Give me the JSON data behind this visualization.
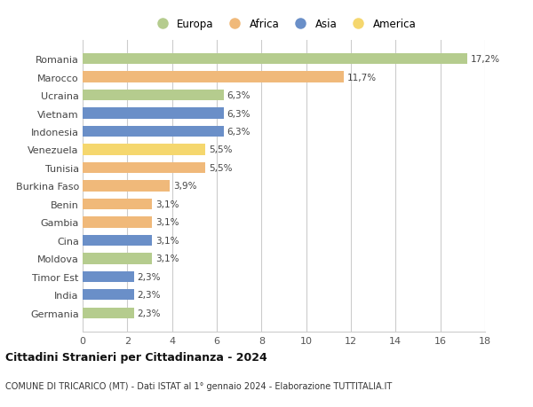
{
  "categories": [
    "Romania",
    "Marocco",
    "Ucraina",
    "Vietnam",
    "Indonesia",
    "Venezuela",
    "Tunisia",
    "Burkina Faso",
    "Benin",
    "Gambia",
    "Cina",
    "Moldova",
    "Timor Est",
    "India",
    "Germania"
  ],
  "values": [
    17.2,
    11.7,
    6.3,
    6.3,
    6.3,
    5.5,
    5.5,
    3.9,
    3.1,
    3.1,
    3.1,
    3.1,
    2.3,
    2.3,
    2.3
  ],
  "labels": [
    "17,2%",
    "11,7%",
    "6,3%",
    "6,3%",
    "6,3%",
    "5,5%",
    "5,5%",
    "3,9%",
    "3,1%",
    "3,1%",
    "3,1%",
    "3,1%",
    "2,3%",
    "2,3%",
    "2,3%"
  ],
  "continents": [
    "Europa",
    "Africa",
    "Europa",
    "Asia",
    "Asia",
    "America",
    "Africa",
    "Africa",
    "Africa",
    "Africa",
    "Asia",
    "Europa",
    "Asia",
    "Asia",
    "Europa"
  ],
  "colors": {
    "Europa": "#b5cc8e",
    "Africa": "#f0b97a",
    "Asia": "#6a8fc8",
    "America": "#f5d76e"
  },
  "legend_order": [
    "Europa",
    "Africa",
    "Asia",
    "America"
  ],
  "xlim": [
    0,
    18
  ],
  "xticks": [
    0,
    2,
    4,
    6,
    8,
    10,
    12,
    14,
    16,
    18
  ],
  "title": "Cittadini Stranieri per Cittadinanza - 2024",
  "subtitle": "COMUNE DI TRICARICO (MT) - Dati ISTAT al 1° gennaio 2024 - Elaborazione TUTTITALIA.IT",
  "bg_color": "#ffffff",
  "grid_color": "#cccccc",
  "bar_height": 0.6
}
